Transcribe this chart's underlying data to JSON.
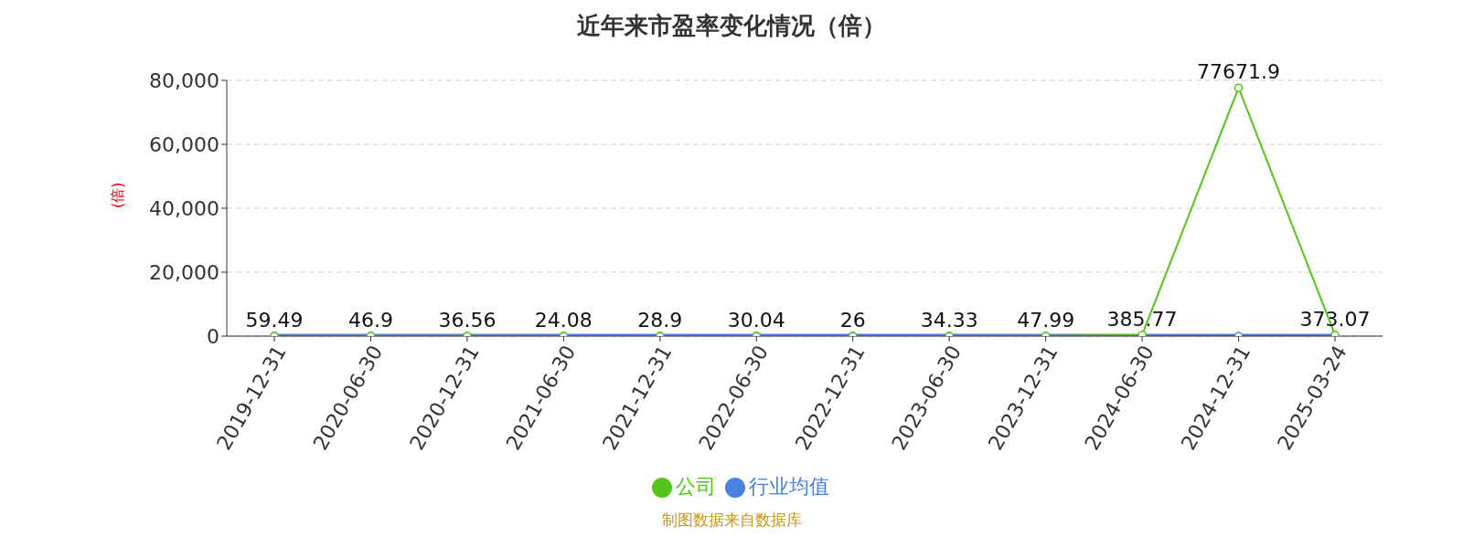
{
  "chart_data": {
    "type": "line",
    "title": "近年来市盈率变化情况（倍）",
    "ylabel": "(倍)",
    "categories": [
      "2019-12-31",
      "2020-06-30",
      "2020-12-31",
      "2021-06-30",
      "2021-12-31",
      "2022-06-30",
      "2022-12-31",
      "2023-06-30",
      "2023-12-31",
      "2024-06-30",
      "2024-12-31",
      "2025-03-24"
    ],
    "series": [
      {
        "name": "公司",
        "color": "#52c41a",
        "values": [
          59.49,
          46.9,
          36.56,
          24.08,
          28.9,
          30.04,
          26,
          34.33,
          47.99,
          385.77,
          77671.9,
          373.07
        ],
        "value_labels": [
          "59.49",
          "46.9",
          "36.56",
          "24.08",
          "28.9",
          "30.04",
          "26",
          "34.33",
          "47.99",
          "385.77",
          "77671.9",
          "373.07"
        ]
      },
      {
        "name": "行业均值",
        "color": "#4a80e0",
        "values": [
          0,
          0,
          0,
          0,
          0,
          0,
          0,
          0,
          0,
          0,
          0,
          0
        ]
      }
    ],
    "ylim": [
      0,
      80000
    ],
    "yticks": [
      0,
      {
        "value": 20000,
        "label": "20,000"
      },
      {
        "value": 40000,
        "label": "40,000"
      },
      {
        "value": 60000,
        "label": "60,000"
      },
      {
        "value": 80000,
        "label": "80,000"
      }
    ],
    "grid": "y",
    "legend": "bottom",
    "marker": "circle",
    "line_style": "solid",
    "annotations": [
      "制图数据来自数据库"
    ]
  }
}
